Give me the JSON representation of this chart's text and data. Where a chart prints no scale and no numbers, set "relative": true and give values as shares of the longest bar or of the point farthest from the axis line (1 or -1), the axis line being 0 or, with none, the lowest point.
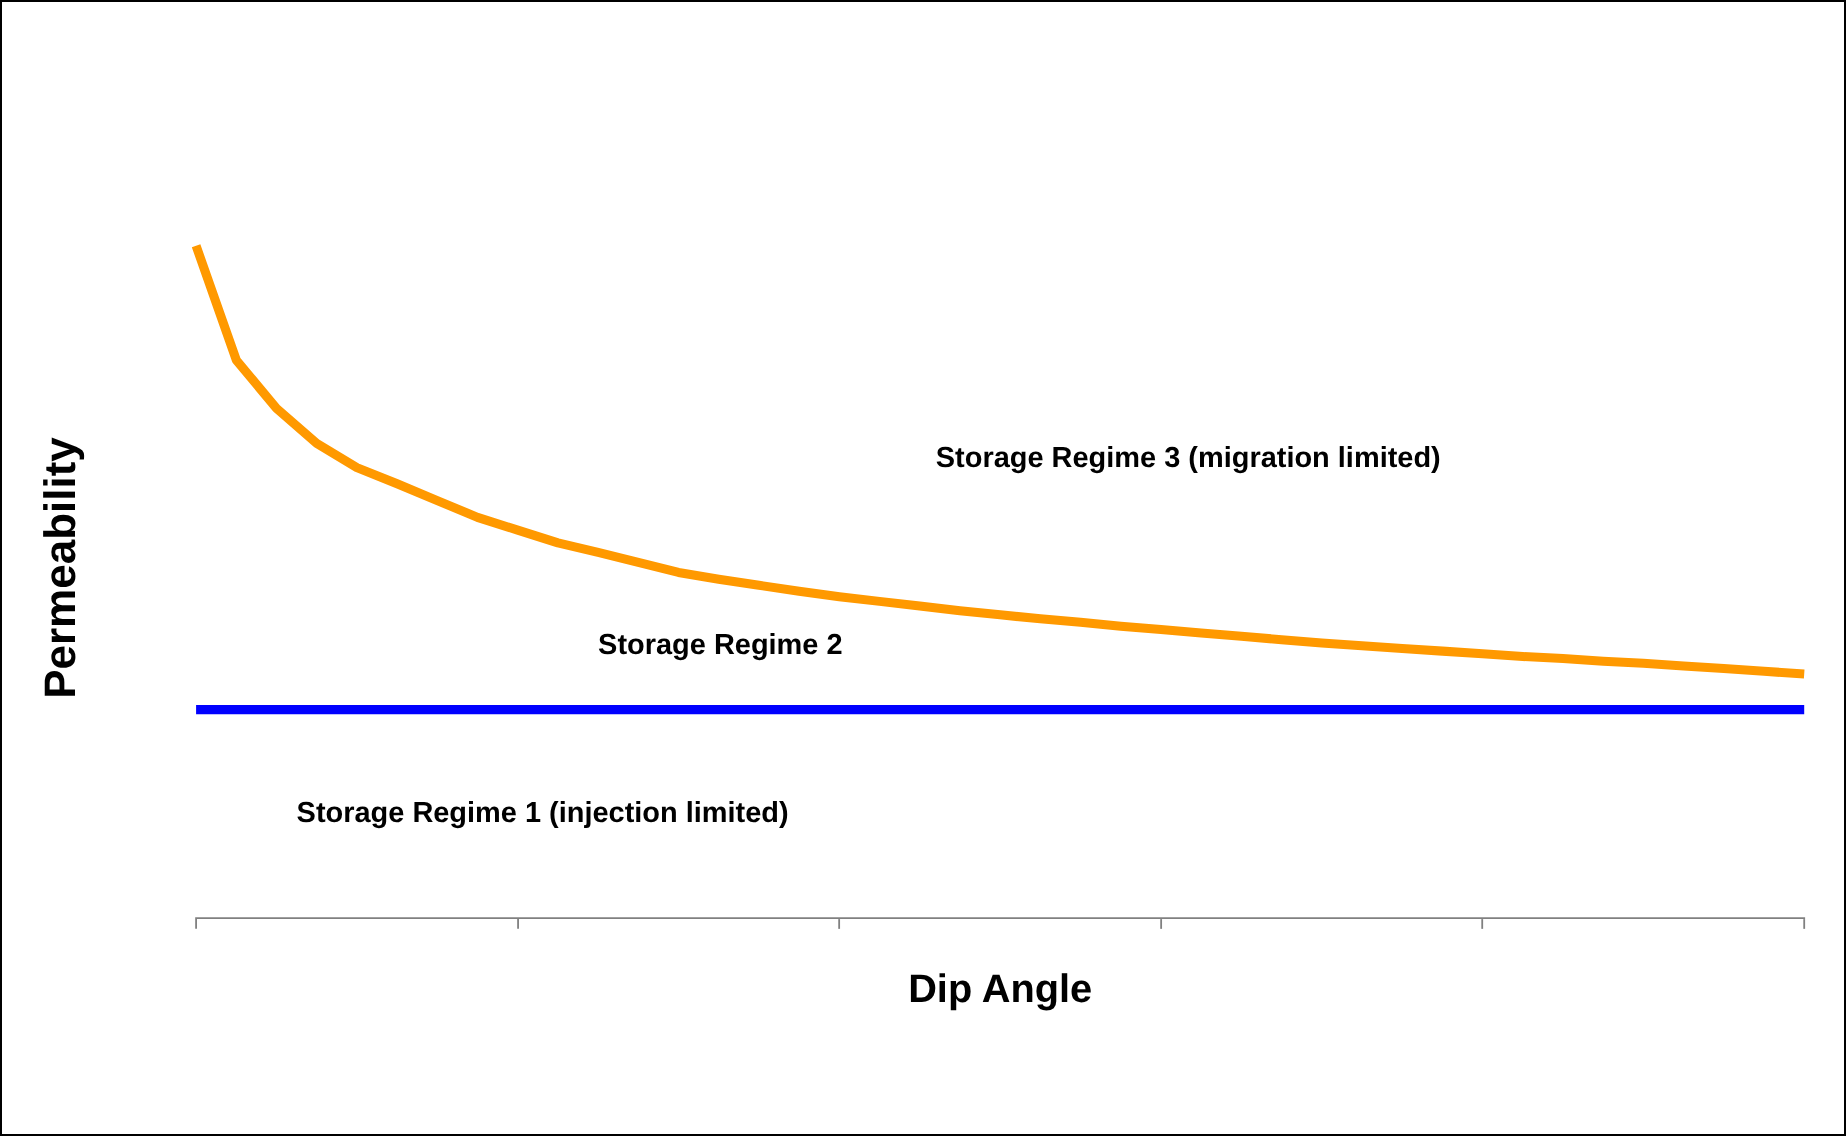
{
  "chart_data": {
    "type": "line",
    "relative": true,
    "xlabel": "Dip Angle",
    "ylabel": "Permeability",
    "categories": [
      null,
      null,
      null,
      null,
      null,
      null,
      null,
      null,
      null,
      null,
      null,
      null,
      null,
      null,
      null,
      null,
      null,
      null,
      null,
      null,
      null,
      null,
      null,
      null,
      null,
      null,
      null,
      null,
      null,
      null,
      null,
      null,
      null,
      null,
      null,
      null,
      null,
      null,
      null,
      null,
      null
    ],
    "series": [
      {
        "color": "#ff9900",
        "values": [
          1,
          0.83,
          0.758,
          0.706,
          0.67,
          0.646,
          0.621,
          0.596,
          0.577,
          0.558,
          0.544,
          0.529,
          0.514,
          0.504,
          0.495,
          0.486,
          0.478,
          0.471,
          0.464,
          0.457,
          0.451,
          0.445,
          0.44,
          0.434,
          0.429,
          0.424,
          0.419,
          0.414,
          0.409,
          0.405,
          0.401,
          0.397,
          0.393,
          0.389,
          0.386,
          0.382,
          0.379,
          0.375,
          0.371,
          0.367,
          0.363
        ]
      },
      {
        "color": "#0000ff",
        "values": [
          0.31,
          0.31,
          0.31,
          0.31,
          0.31,
          0.31,
          0.31,
          0.31,
          0.31,
          0.31,
          0.31,
          0.31,
          0.31,
          0.31,
          0.31,
          0.31,
          0.31,
          0.31,
          0.31,
          0.31,
          0.31,
          0.31,
          0.31,
          0.31,
          0.31,
          0.31,
          0.31,
          0.31,
          0.31,
          0.31,
          0.31,
          0.31,
          0.31,
          0.31,
          0.31,
          0.31,
          0.31,
          0.31,
          0.31,
          0.31,
          0.31
        ]
      }
    ],
    "annotations": [
      "Storage Regime 3 (migration limited)",
      "Storage Regime 2",
      "Storage Regime 1 (injection limited)"
    ],
    "grid": false,
    "legend": false,
    "marker": "none"
  }
}
